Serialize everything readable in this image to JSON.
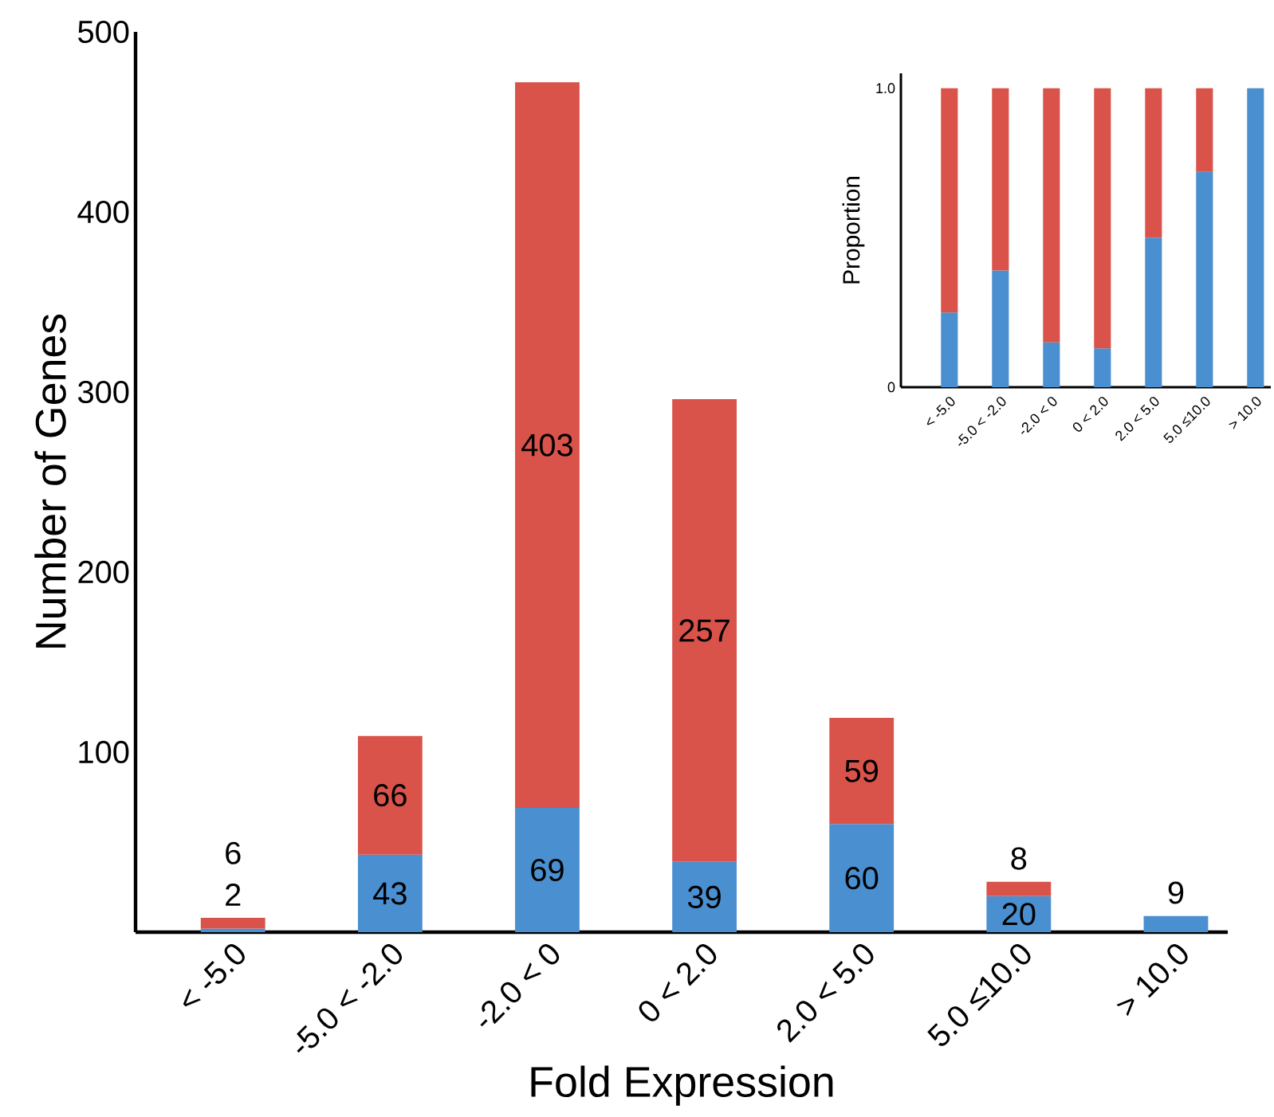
{
  "chart_data": [
    {
      "type": "bar",
      "stacked": true,
      "xlabel": "Fold Expression",
      "ylabel": "Number of Genes",
      "categories": [
        "< -5.0",
        "-5.0 < -2.0",
        "-2.0 < 0",
        "0 < 2.0",
        "2.0 < 5.0",
        "5.0 ≤10.0",
        "> 10.0"
      ],
      "series": [
        {
          "color": "#4a8fd0",
          "values": [
            2,
            43,
            69,
            39,
            60,
            20,
            9
          ]
        },
        {
          "color": "#d9534a",
          "values": [
            6,
            66,
            403,
            257,
            59,
            8,
            null
          ]
        }
      ],
      "ylim": [
        0,
        500
      ],
      "yticks": [
        100,
        200,
        300,
        400,
        500
      ],
      "data_labels": true
    },
    {
      "type": "bar",
      "stacked": true,
      "ylabel": "Proportion",
      "categories": [
        "< -5.0",
        "-5.0 < -2.0",
        "-2.0 < 0",
        "0 < 2.0",
        "2.0 < 5.0",
        "5.0 ≤10.0",
        "> 10.0"
      ],
      "series": [
        {
          "color": "#4a8fd0",
          "values": [
            0.25,
            0.39,
            0.15,
            0.13,
            0.5,
            0.72,
            1.0
          ]
        },
        {
          "color": "#d9534a",
          "values": [
            0.75,
            0.61,
            0.85,
            0.87,
            0.5,
            0.28,
            null
          ]
        }
      ],
      "ylim": [
        0,
        1.05
      ],
      "yticks": [
        0,
        {
          "value": 1.0,
          "label": "1.0"
        }
      ]
    }
  ]
}
